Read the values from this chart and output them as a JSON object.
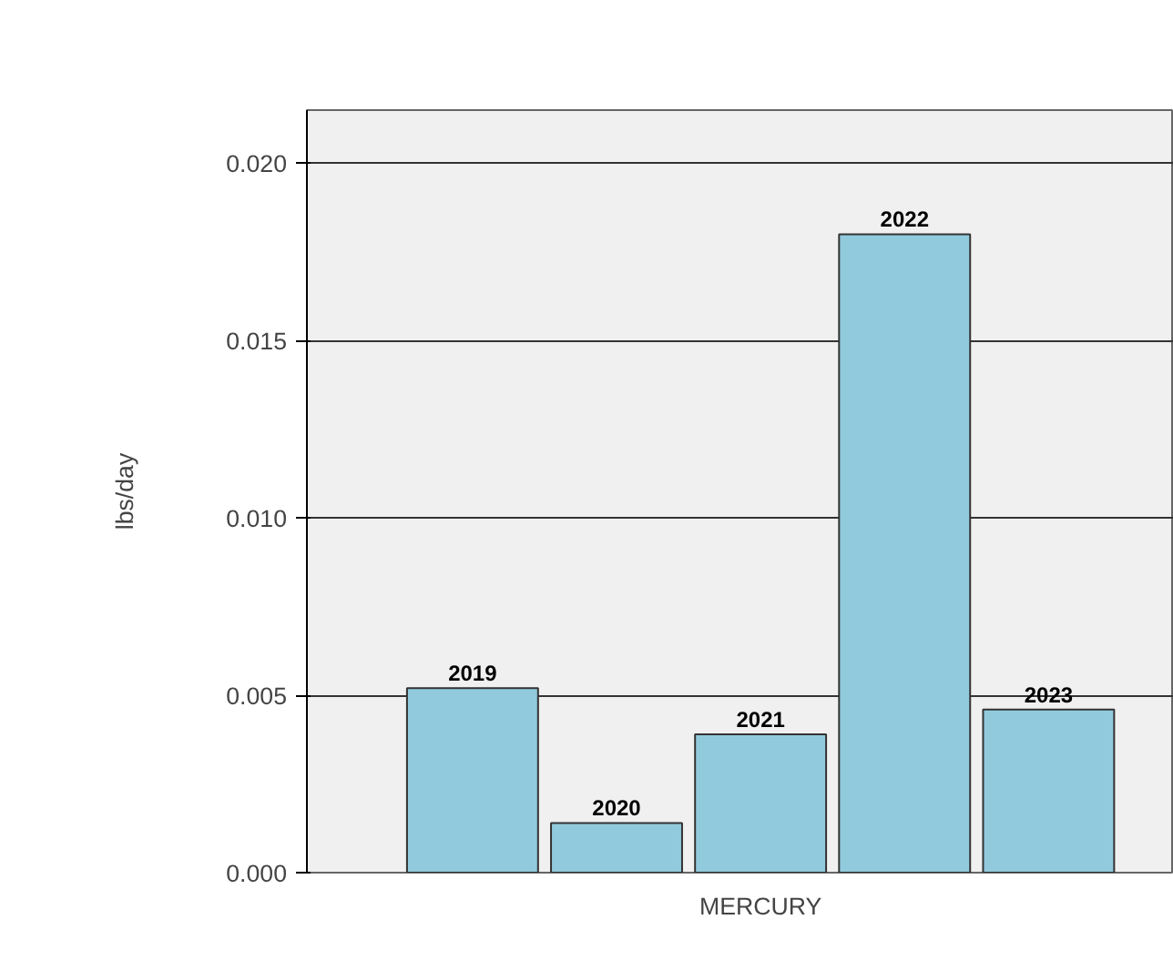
{
  "chart_data": {
    "type": "bar",
    "ylabel": "lbs/day",
    "categories": [
      "MERCURY"
    ],
    "series": [
      {
        "name": "2019",
        "color": "#92cadd",
        "values": [
          0.0052
        ]
      },
      {
        "name": "2020",
        "color": "#92cadd",
        "values": [
          0.0014
        ]
      },
      {
        "name": "2021",
        "color": "#92cadd",
        "values": [
          0.0039
        ]
      },
      {
        "name": "2022",
        "color": "#92cadd",
        "values": [
          0.018
        ]
      },
      {
        "name": "2023",
        "color": "#92cadd",
        "values": [
          0.0046
        ]
      }
    ],
    "ylim": [
      0,
      0.0215
    ],
    "yticks": [
      {
        "value": 0,
        "label": "0.000"
      },
      {
        "value": 0.005,
        "label": "0.005"
      },
      {
        "value": 0.01,
        "label": "0.010"
      },
      {
        "value": 0.015,
        "label": "0.015"
      },
      {
        "value": 0.02,
        "label": "0.020"
      }
    ],
    "grid": "y"
  }
}
